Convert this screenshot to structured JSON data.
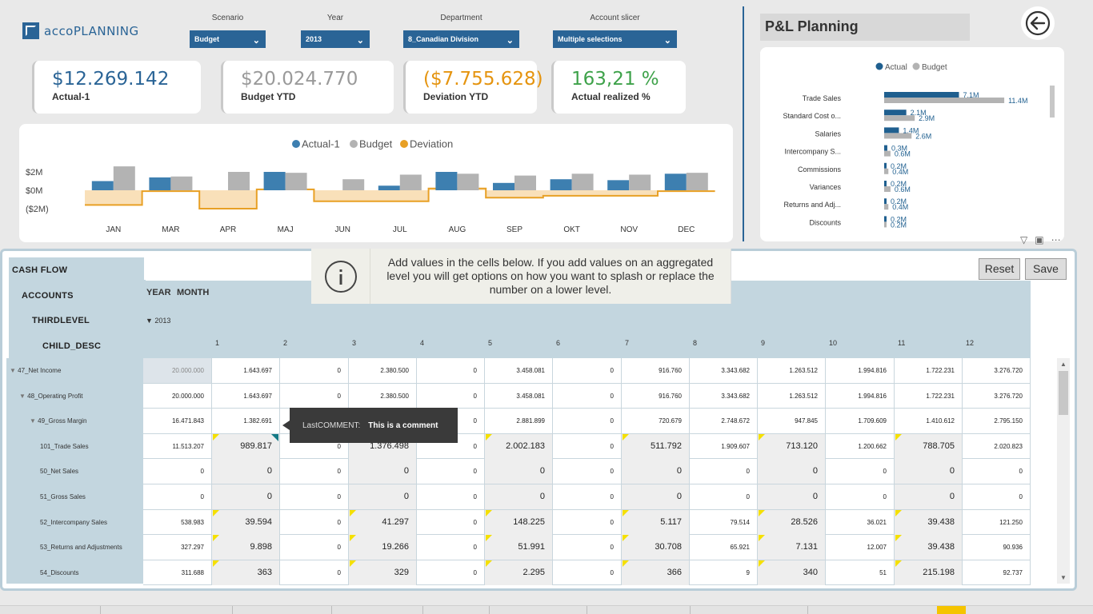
{
  "app": {
    "logo_a": "acco",
    "logo_b": "PLANNING"
  },
  "slicers": [
    {
      "label": "Scenario",
      "value": "Budget"
    },
    {
      "label": "Year",
      "value": "2013"
    },
    {
      "label": "Department",
      "value": "8_Canadian Division"
    },
    {
      "label": "Account slicer",
      "value": "Multiple selections"
    }
  ],
  "kpis": [
    {
      "value": "$12.269.142",
      "caption": "Actual-1",
      "color": "#2a6496"
    },
    {
      "value": "$20.024.770",
      "caption": "Budget YTD",
      "color": "#9a9a9a"
    },
    {
      "value": "($7.755.628)",
      "caption": "Deviation YTD",
      "color": "#e5940f"
    },
    {
      "value": "163,21 %",
      "caption": "Actual realized %",
      "color": "#3ea24a"
    }
  ],
  "chart_data": [
    {
      "type": "bar",
      "legend": [
        "Actual-1",
        "Budget",
        "Deviation"
      ],
      "colors": {
        "actual": "#3d7fb0",
        "budget": "#b3b3b3",
        "deviation": "#e8a025"
      },
      "categories": [
        "JAN",
        "MAR",
        "APR",
        "MAJ",
        "JUN",
        "JUL",
        "AUG",
        "SEP",
        "OKT",
        "NOV",
        "DEC"
      ],
      "series": [
        {
          "name": "Actual-1",
          "values": [
            1.0,
            1.4,
            0.0,
            2.0,
            0.0,
            0.5,
            2.0,
            0.8,
            1.2,
            1.1,
            1.8
          ]
        },
        {
          "name": "Budget",
          "values": [
            2.6,
            1.5,
            2.0,
            1.9,
            1.2,
            1.7,
            1.8,
            1.6,
            1.8,
            1.7,
            1.9
          ]
        },
        {
          "name": "Deviation",
          "values": [
            -1.6,
            -0.1,
            -2.0,
            0.1,
            -1.2,
            -1.2,
            0.2,
            -0.8,
            -0.6,
            -0.6,
            -0.1
          ]
        }
      ],
      "yticks": [
        "$2M",
        "$0M",
        "($2M)"
      ],
      "ylim": [
        -2.2,
        2.8
      ]
    },
    {
      "type": "bar",
      "orientation": "horizontal",
      "legend": [
        "Actual",
        "Budget"
      ],
      "categories": [
        "Trade Sales",
        "Standard Cost o...",
        "Salaries",
        "Intercompany S...",
        "Commissions",
        "Variances",
        "Returns and Adj...",
        "Discounts"
      ],
      "series": [
        {
          "name": "Actual",
          "values": [
            7.1,
            2.1,
            1.4,
            0.3,
            0.2,
            0.2,
            0.2,
            0.2
          ],
          "labels": [
            "7.1M",
            "2.1M",
            "1.4M",
            "0.3M",
            "0.2M",
            "0.2M",
            "0.2M",
            "0.2M"
          ]
        },
        {
          "name": "Budget",
          "values": [
            11.4,
            2.9,
            2.6,
            0.6,
            0.4,
            0.6,
            0.4,
            0.2
          ],
          "labels": [
            "11.4M",
            "2.9M",
            "2.6M",
            "0.6M",
            "0.4M",
            "0.6M",
            "0.4M",
            "0.2M"
          ]
        }
      ],
      "xlim": [
        0,
        12
      ]
    }
  ],
  "pl": {
    "title": "P&L Planning"
  },
  "matrix": {
    "header_labels": [
      "CASH FLOW",
      "ACCOUNTS",
      "THIRDLEVEL",
      "CHILD_DESC"
    ],
    "year_label": "YEAR",
    "month_label": "MONTH",
    "year_value": "2013",
    "months": [
      "1",
      "2",
      "3",
      "4",
      "5",
      "6",
      "7",
      "8",
      "9",
      "10",
      "11",
      "12"
    ],
    "info_message": "Add values in the cells below. If you add values on an aggregated level you will get options on how you want to splash or replace the number on a lower level.",
    "reset_label": "Reset",
    "save_label": "Save",
    "comment_key": "LastCOMMENT:",
    "comment_value": "This is a comment",
    "rows": [
      {
        "label": "47_Net Income",
        "total": "20.000.000",
        "values": [
          "1.643.697",
          "0",
          "2.380.500",
          "0",
          "3.458.081",
          "0",
          "916.760",
          "3.343.682",
          "1.263.512",
          "1.994.816",
          "1.722.231",
          "3.276.720"
        ]
      },
      {
        "label": "48_Operating Profit",
        "total": "20.000.000",
        "values": [
          "1.643.697",
          "0",
          "2.380.500",
          "0",
          "3.458.081",
          "0",
          "916.760",
          "3.343.682",
          "1.263.512",
          "1.994.816",
          "1.722.231",
          "3.276.720"
        ]
      },
      {
        "label": "49_Gross Margin",
        "total": "16.471.843",
        "values": [
          "1.382.691",
          "0",
          "",
          "0",
          "2.881.899",
          "0",
          "720.679",
          "2.748.672",
          "947.845",
          "1.709.609",
          "1.410.612",
          "2.795.150"
        ]
      },
      {
        "label": "101_Trade Sales",
        "total": "11.513.207",
        "values": [
          "989.817",
          "0",
          "1.376.498",
          "0",
          "2.002.183",
          "0",
          "511.792",
          "1.909.607",
          "713.120",
          "1.200.662",
          "788.705",
          "2.020.823"
        ]
      },
      {
        "label": "50_Net Sales",
        "total": "0",
        "values": [
          "0",
          "0",
          "0",
          "0",
          "0",
          "0",
          "0",
          "0",
          "0",
          "0",
          "0",
          "0"
        ]
      },
      {
        "label": "51_Gross Sales",
        "total": "0",
        "values": [
          "0",
          "0",
          "0",
          "0",
          "0",
          "0",
          "0",
          "0",
          "0",
          "0",
          "0",
          "0"
        ]
      },
      {
        "label": "52_Intercompany Sales",
        "total": "538.983",
        "values": [
          "39.594",
          "0",
          "41.297",
          "0",
          "148.225",
          "0",
          "5.117",
          "79.514",
          "28.526",
          "36.021",
          "39.438",
          "121.250"
        ]
      },
      {
        "label": "53_Returns and Adjustments",
        "total": "327.297",
        "values": [
          "9.898",
          "0",
          "19.266",
          "0",
          "51.991",
          "0",
          "30.708",
          "65.921",
          "7.131",
          "12.007",
          "39.438",
          "90.936"
        ]
      },
      {
        "label": "54_Discounts",
        "total": "311.688",
        "values": [
          "363",
          "0",
          "329",
          "0",
          "2.295",
          "0",
          "366",
          "9",
          "340",
          "51",
          "215.198",
          "92.737"
        ]
      }
    ]
  }
}
